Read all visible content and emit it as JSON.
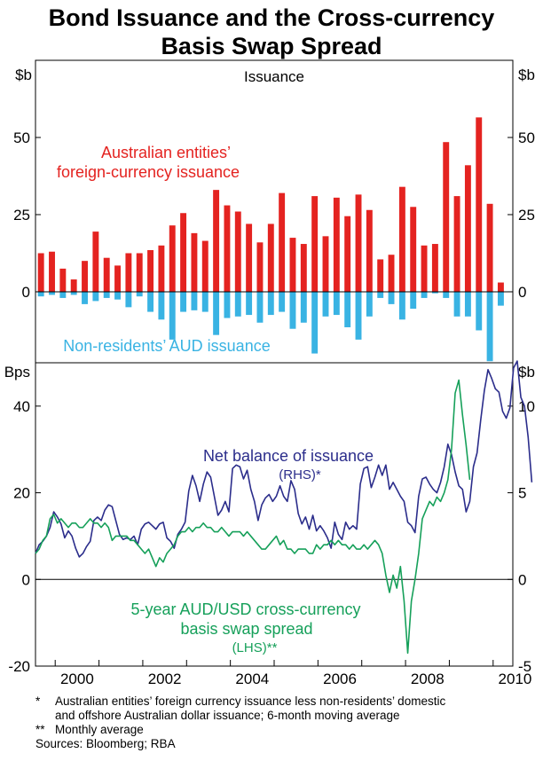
{
  "title": {
    "line1": "Bond Issuance and the Cross-currency",
    "line2": "Basis Swap Spread"
  },
  "colors": {
    "red": "#e42320",
    "blue": "#39b3e3",
    "navy": "#2b2d8b",
    "green": "#16a05a"
  },
  "chart_data": [
    {
      "type": "bar",
      "title": "Issuance",
      "ylabel": "$b",
      "ylim": [
        -23,
        75
      ],
      "yticks": [
        0,
        25,
        50
      ],
      "x_start": 1999.55,
      "x_step": 0.25,
      "series": [
        {
          "name": "Australian entities’ foreign-currency issuance",
          "label_lines": [
            "Australian entities’",
            "foreign-currency issuance"
          ],
          "values": [
            12.5,
            13,
            7.5,
            4,
            10,
            19.5,
            11,
            8.5,
            12.5,
            12.5,
            13.5,
            15,
            21.5,
            25.5,
            19,
            16.5,
            33,
            28,
            26,
            22,
            16,
            22,
            32,
            17.5,
            15.5,
            31,
            18,
            30.5,
            24.5,
            31.5,
            26.5,
            10.5,
            12,
            34,
            27.5,
            15,
            15.5,
            48.5,
            31,
            41,
            56.5,
            28.5,
            3
          ]
        },
        {
          "name": "Non-residents’ AUD issuance",
          "label_lines": [
            "Non-residents’ AUD issuance"
          ],
          "values": [
            -1.5,
            -1,
            -2,
            -1,
            -4,
            -3,
            -2,
            -2.5,
            -5,
            -1.5,
            -6.5,
            -9,
            -15.5,
            -6.5,
            -6,
            -6.5,
            -14,
            -8.5,
            -8,
            -7.5,
            -10,
            -7.5,
            -6.5,
            -12,
            -10,
            -20,
            -8,
            -7.5,
            -11.5,
            -15.5,
            -8,
            -2,
            -4,
            -9,
            -5.5,
            -2,
            -0.5,
            -2,
            -8,
            -8,
            -12.5,
            -22.5,
            -4.5
          ]
        }
      ]
    },
    {
      "type": "line",
      "xlabel_ticks": [
        "2000",
        "2002",
        "2004",
        "2006",
        "2008",
        "2010"
      ],
      "x_ticks_values": [
        2000,
        2001,
        2002,
        2003,
        2004,
        2005,
        2006,
        2007,
        2008,
        2009,
        2010
      ],
      "left_axis": {
        "label": "Bps",
        "ylim": [
          -20,
          50
        ],
        "ticks": [
          -20,
          0,
          20,
          40
        ]
      },
      "right_axis": {
        "label": "$b",
        "ylim": [
          -5,
          12.5
        ],
        "ticks": [
          -5,
          0,
          5,
          10
        ]
      },
      "series": [
        {
          "name": "Net balance of issuance",
          "axis": "right",
          "label_lines": [
            "Net balance of issuance",
            "(RHS)*"
          ],
          "x_start": 1999.55,
          "x_step": 0.0833333,
          "values": [
            1.5,
            2.0,
            2.2,
            2.5,
            3.0,
            3.9,
            3.6,
            3.2,
            2.4,
            2.8,
            2.5,
            1.8,
            1.3,
            1.5,
            1.9,
            2.2,
            3.4,
            3.6,
            3.4,
            4.0,
            4.3,
            4.2,
            3.4,
            2.6,
            2.3,
            2.4,
            2.3,
            2.5,
            2.0,
            2.9,
            3.2,
            3.3,
            3.1,
            2.9,
            3.2,
            3.3,
            2.4,
            2.2,
            1.8,
            2.6,
            2.9,
            3.3,
            5.1,
            6.0,
            5.4,
            4.5,
            5.5,
            6.2,
            5.9,
            4.8,
            3.7,
            4.0,
            4.5,
            3.9,
            6.4,
            6.6,
            6.5,
            5.8,
            6.3,
            5.2,
            4.5,
            3.4,
            4.3,
            4.7,
            4.9,
            4.5,
            4.8,
            5.4,
            4.8,
            4.5,
            5.7,
            5.2,
            3.8,
            3.2,
            3.6,
            2.9,
            3.7,
            2.8,
            3.1,
            2.8,
            2.4,
            1.8,
            3.3,
            2.6,
            2.3,
            3.3,
            2.9,
            3.1,
            2.9,
            5.5,
            6.4,
            6.5,
            5.3,
            5.9,
            6.6,
            6.0,
            6.6,
            5.2,
            5.6,
            5.2,
            4.8,
            4.5,
            3.3,
            3.1,
            2.7,
            4.8,
            5.8,
            5.9,
            5.5,
            5.2,
            5.0,
            5.6,
            6.5,
            7.8,
            7.2,
            6.2,
            5.4,
            5.2,
            3.9,
            4.5,
            6.5,
            7.3,
            9.2,
            10.9,
            12.1,
            11.6,
            11.0,
            10.8,
            9.7,
            9.3,
            9.9,
            12.2,
            12.6,
            10.5,
            10.0,
            8.2,
            5.6
          ]
        },
        {
          "name": "5-year AUD/USD cross-currency basis swap spread",
          "axis": "left",
          "label_lines": [
            "5-year AUD/USD cross-currency",
            "basis swap spread",
            "(LHS)**"
          ],
          "x_start": 1999.55,
          "x_step": 0.0833333,
          "values": [
            6,
            7,
            9,
            10,
            14,
            15,
            13,
            14,
            13,
            12,
            13,
            13,
            12,
            12,
            13,
            14,
            13,
            13,
            12,
            13,
            12,
            9,
            10,
            10,
            10,
            10,
            9,
            9,
            8,
            7,
            6,
            7,
            5,
            3,
            5,
            4,
            6,
            7,
            8,
            10,
            11,
            11,
            12,
            11,
            12,
            12,
            13,
            12,
            12,
            11,
            11,
            12,
            11,
            10,
            11,
            11,
            11,
            10,
            11,
            10,
            9,
            8,
            7,
            7,
            8,
            9,
            10,
            8,
            9,
            7,
            7,
            6,
            7,
            7,
            7,
            6,
            6,
            8,
            7,
            8,
            8,
            9,
            8,
            9,
            8,
            8,
            7,
            8,
            7,
            7,
            8,
            7,
            8,
            9,
            8,
            6,
            1,
            -3,
            1,
            -2,
            3,
            -5,
            -17,
            -5,
            0,
            6,
            14,
            16,
            18,
            17,
            19,
            18,
            20,
            23,
            30,
            43,
            46,
            38,
            31,
            23
          ]
        }
      ]
    }
  ],
  "footnotes": [
    {
      "mark": "*",
      "lines": [
        "Australian entities’ foreign currency issuance less non-residents’ domestic",
        "and offshore Australian dollar issuance; 6-month moving average"
      ]
    },
    {
      "mark": "**",
      "lines": [
        "Monthly average"
      ]
    },
    {
      "mark": "",
      "lines": [
        "Sources: Bloomberg; RBA"
      ]
    }
  ]
}
